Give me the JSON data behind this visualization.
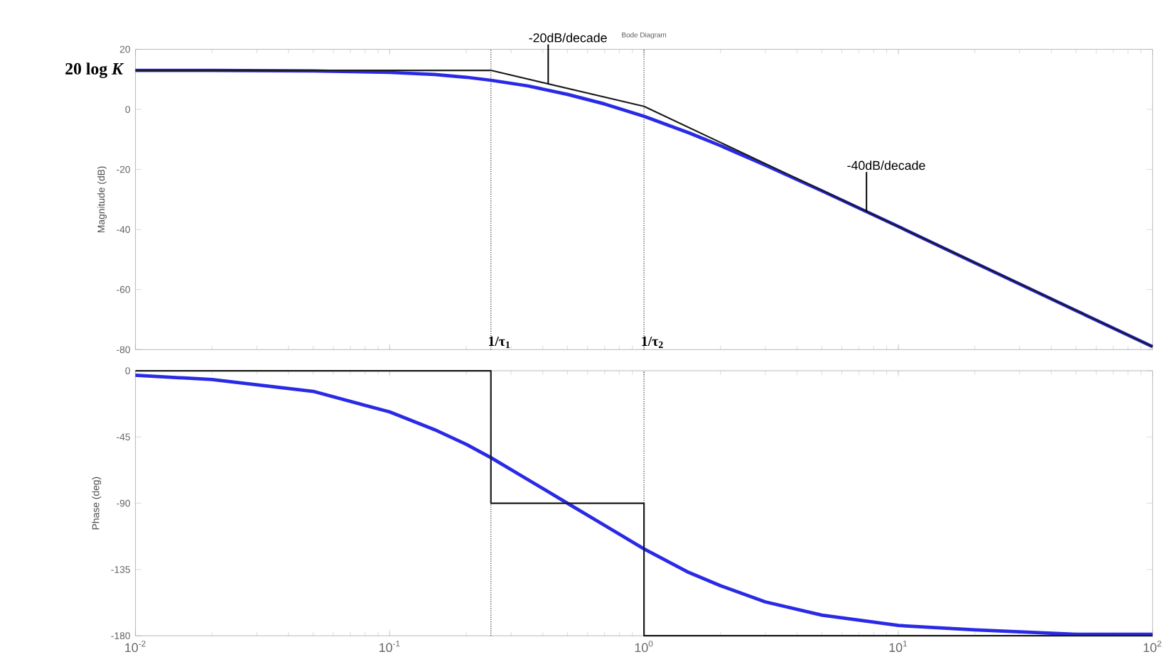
{
  "chart_data": [
    {
      "type": "line",
      "title": "Bode Diagram",
      "ylabel": "Magnitude (dB)",
      "log": "x",
      "tick_labels": "y",
      "xlim": [
        0.01,
        100
      ],
      "ylim": [
        -80,
        20
      ],
      "xticks": [
        {
          "value": 0.01,
          "label": null
        },
        {
          "value": 0.1,
          "label": null
        },
        {
          "value": 1,
          "label": null
        },
        {
          "value": 10,
          "label": null
        },
        {
          "value": 100,
          "label": null
        }
      ],
      "yticks": [
        -80,
        -60,
        -40,
        -20,
        0,
        20
      ],
      "series": [
        {
          "color": "#2a2ae6",
          "x": [
            0.01,
            0.02,
            0.05,
            0.1,
            0.15,
            0.2,
            0.25,
            0.35,
            0.5,
            0.7,
            1,
            1.5,
            2,
            3,
            5,
            10,
            20,
            50,
            100
          ],
          "values": [
            13,
            13,
            12.8,
            12.3,
            11.6,
            10.7,
            9.7,
            7.8,
            5,
            1.8,
            -2.3,
            -7.8,
            -12.1,
            -18.6,
            -27.1,
            -39,
            -51.1,
            -67,
            -79
          ]
        },
        {
          "color": "#1a1a1a",
          "x": [
            0.01,
            0.25,
            1,
            100
          ],
          "values": [
            13,
            13,
            1,
            -79
          ]
        }
      ],
      "ref_lines": [
        {
          "axis": "x",
          "value": 0.25,
          "label": "1/τ$_{1}$",
          "color": "#333333",
          "line_style": "dotted"
        },
        {
          "axis": "x",
          "value": 1,
          "label": "1/τ$_{2}$",
          "color": "#333333",
          "line_style": "dotted"
        }
      ],
      "annotations": [
        {
          "text": "20 log *K*",
          "x": 0.01,
          "y": 13
        },
        {
          "text": "-20dB/decade",
          "x": 0.42,
          "y": 8.5
        },
        {
          "text": "-40dB/decade",
          "x": 7.5,
          "y": -34
        }
      ]
    },
    {
      "type": "line",
      "xlabel": null,
      "ylabel": "Phase (deg)",
      "log": "x",
      "xlim": [
        0.01,
        100
      ],
      "ylim": [
        -180,
        0
      ],
      "xticks": [
        {
          "value": 0.01,
          "label": "10$^{-2}$"
        },
        {
          "value": 0.1,
          "label": "10$^{-1}$"
        },
        {
          "value": 1,
          "label": "10$^{0}$"
        },
        {
          "value": 10,
          "label": "10$^{1}$"
        },
        {
          "value": 100,
          "label": "10$^{2}$"
        }
      ],
      "yticks": [
        -180,
        -135,
        -90,
        -45,
        0
      ],
      "series": [
        {
          "color": "#2a2ae6",
          "x": [
            0.01,
            0.02,
            0.05,
            0.1,
            0.15,
            0.2,
            0.25,
            0.35,
            0.5,
            0.7,
            1,
            1.5,
            2,
            3,
            5,
            10,
            20,
            50,
            100
          ],
          "values": [
            -3,
            -6,
            -14,
            -28,
            -40,
            -50,
            -59,
            -74,
            -90,
            -105,
            -121,
            -137,
            -146,
            -157,
            -166,
            -173,
            -176,
            -179,
            -179
          ]
        },
        {
          "color": "#1a1a1a",
          "x": [
            0.01,
            0.25,
            0.25,
            1,
            1,
            100
          ],
          "values": [
            0,
            0,
            -90,
            -90,
            -180,
            -180
          ]
        }
      ],
      "ref_lines": [
        {
          "axis": "x",
          "value": 0.25,
          "color": "#333333",
          "line_style": "dotted"
        },
        {
          "axis": "x",
          "value": 1,
          "color": "#333333",
          "line_style": "dotted"
        }
      ]
    }
  ]
}
